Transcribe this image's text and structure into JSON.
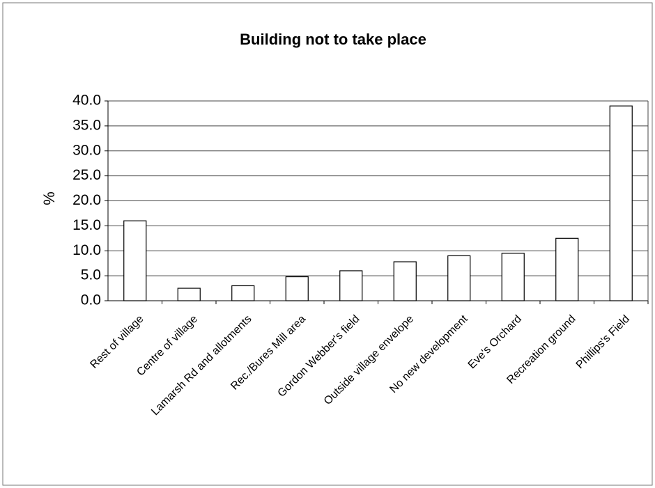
{
  "chart_data": {
    "type": "bar",
    "title": "Building not to take place",
    "y_label": "%",
    "categories": [
      "Rest of village",
      "Centre of village",
      "Lamarsh Rd and allotments",
      "Rec./Bures Mill area",
      "Gordon Webber's field",
      "Outside village envelope",
      "No new development",
      "Eve's Orchard",
      "Recreation ground",
      "Phillips's Field"
    ],
    "values": [
      16.0,
      2.5,
      3.0,
      4.8,
      6.0,
      7.8,
      9.0,
      9.5,
      12.5,
      39.0
    ],
    "color": "#ffffff",
    "ylim": [
      0,
      40
    ],
    "yticks": [
      {
        "value": 0,
        "label": "0.0"
      },
      {
        "value": 5,
        "label": "5.0"
      },
      {
        "value": 10,
        "label": "10.0"
      },
      {
        "value": 15,
        "label": "15.0"
      },
      {
        "value": 20,
        "label": "20.0"
      },
      {
        "value": 25,
        "label": "25.0"
      },
      {
        "value": 30,
        "label": "30.0"
      },
      {
        "value": 35,
        "label": "35.0"
      },
      {
        "value": 40,
        "label": "40.0"
      }
    ],
    "grid": true
  }
}
